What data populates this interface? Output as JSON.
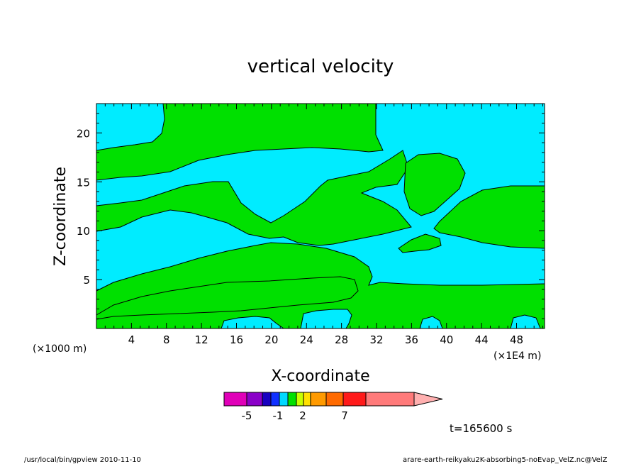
{
  "chart_data": {
    "type": "heatmap",
    "title": "vertical velocity",
    "xlabel": "X-coordinate",
    "ylabel": "Z-coordinate",
    "x_unit_note": "(×1E4 m)",
    "y_unit_note": "(×1000 m)",
    "xlim": [
      0,
      51.2
    ],
    "ylim": [
      0,
      23
    ],
    "x_ticks": [
      4,
      8,
      12,
      16,
      20,
      24,
      28,
      32,
      36,
      40,
      44,
      48
    ],
    "y_ticks": [
      5,
      10,
      15,
      20
    ],
    "fill_colors": {
      "negative": "#00ecff",
      "positive": "#00e000"
    },
    "colorbar": {
      "segments": [
        {
          "color": "#e000b8"
        },
        {
          "color": "#8a00c8"
        },
        {
          "color": "#1800c0"
        },
        {
          "color": "#1030ff"
        },
        {
          "color": "#00d8ff"
        },
        {
          "color": "#00e000"
        },
        {
          "color": "#c8ff00"
        },
        {
          "color": "#ffe000"
        },
        {
          "color": "#ff9a00"
        },
        {
          "color": "#ff6a00"
        },
        {
          "color": "#ff1a1a"
        },
        {
          "color": "#ff7a7a"
        },
        {
          "color": "#ffb0b0"
        }
      ],
      "labels": [
        "-5",
        "-1",
        "2",
        "7"
      ]
    },
    "time_label": "t=165600 s"
  },
  "footer": {
    "left": "/usr/local/bin/gpview  2010-11-10",
    "right": "arare-earth-reikyaku2K-absorbing5-noEvap_VelZ.nc@VelZ"
  }
}
